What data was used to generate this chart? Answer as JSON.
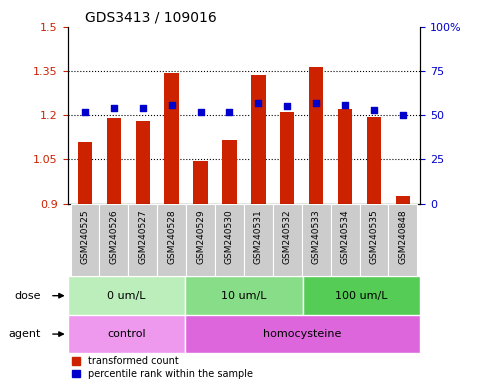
{
  "title": "GDS3413 / 109016",
  "categories": [
    "GSM240525",
    "GSM240526",
    "GSM240527",
    "GSM240528",
    "GSM240529",
    "GSM240530",
    "GSM240531",
    "GSM240532",
    "GSM240533",
    "GSM240534",
    "GSM240535",
    "GSM240848"
  ],
  "red_values": [
    1.11,
    1.19,
    1.18,
    1.345,
    1.046,
    1.115,
    1.337,
    1.212,
    1.365,
    1.22,
    1.195,
    0.925
  ],
  "blue_values": [
    52,
    54,
    54,
    56,
    52,
    52,
    57,
    55,
    57,
    56,
    53,
    50
  ],
  "ylim_left": [
    0.9,
    1.5
  ],
  "ylim_right": [
    0,
    100
  ],
  "yticks_left": [
    0.9,
    1.05,
    1.2,
    1.35,
    1.5
  ],
  "yticks_right": [
    0,
    25,
    50,
    75,
    100
  ],
  "ytick_labels_left": [
    "0.9",
    "1.05",
    "1.2",
    "1.35",
    "1.5"
  ],
  "ytick_labels_right": [
    "0",
    "25",
    "50",
    "75",
    "100%"
  ],
  "hlines": [
    1.05,
    1.2,
    1.35
  ],
  "dose_groups": [
    {
      "label": "0 um/L",
      "start": 0,
      "end": 4
    },
    {
      "label": "10 um/L",
      "start": 4,
      "end": 8
    },
    {
      "label": "100 um/L",
      "start": 8,
      "end": 12
    }
  ],
  "dose_colors": [
    "#bbeebb",
    "#88dd88",
    "#55cc55"
  ],
  "agent_groups": [
    {
      "label": "control",
      "start": 0,
      "end": 4
    },
    {
      "label": "homocysteine",
      "start": 4,
      "end": 12
    }
  ],
  "agent_colors": [
    "#ee99ee",
    "#dd66dd"
  ],
  "bar_color": "#cc2200",
  "blue_color": "#0000cc",
  "tick_label_color_left": "#cc2200",
  "tick_label_color_right": "#0000cc",
  "dose_label": "dose",
  "agent_label": "agent",
  "legend_red": "transformed count",
  "legend_blue": "percentile rank within the sample",
  "bg_color": "#ffffff",
  "xtick_bg": "#cccccc",
  "title_fontsize": 10,
  "bar_width": 0.5
}
